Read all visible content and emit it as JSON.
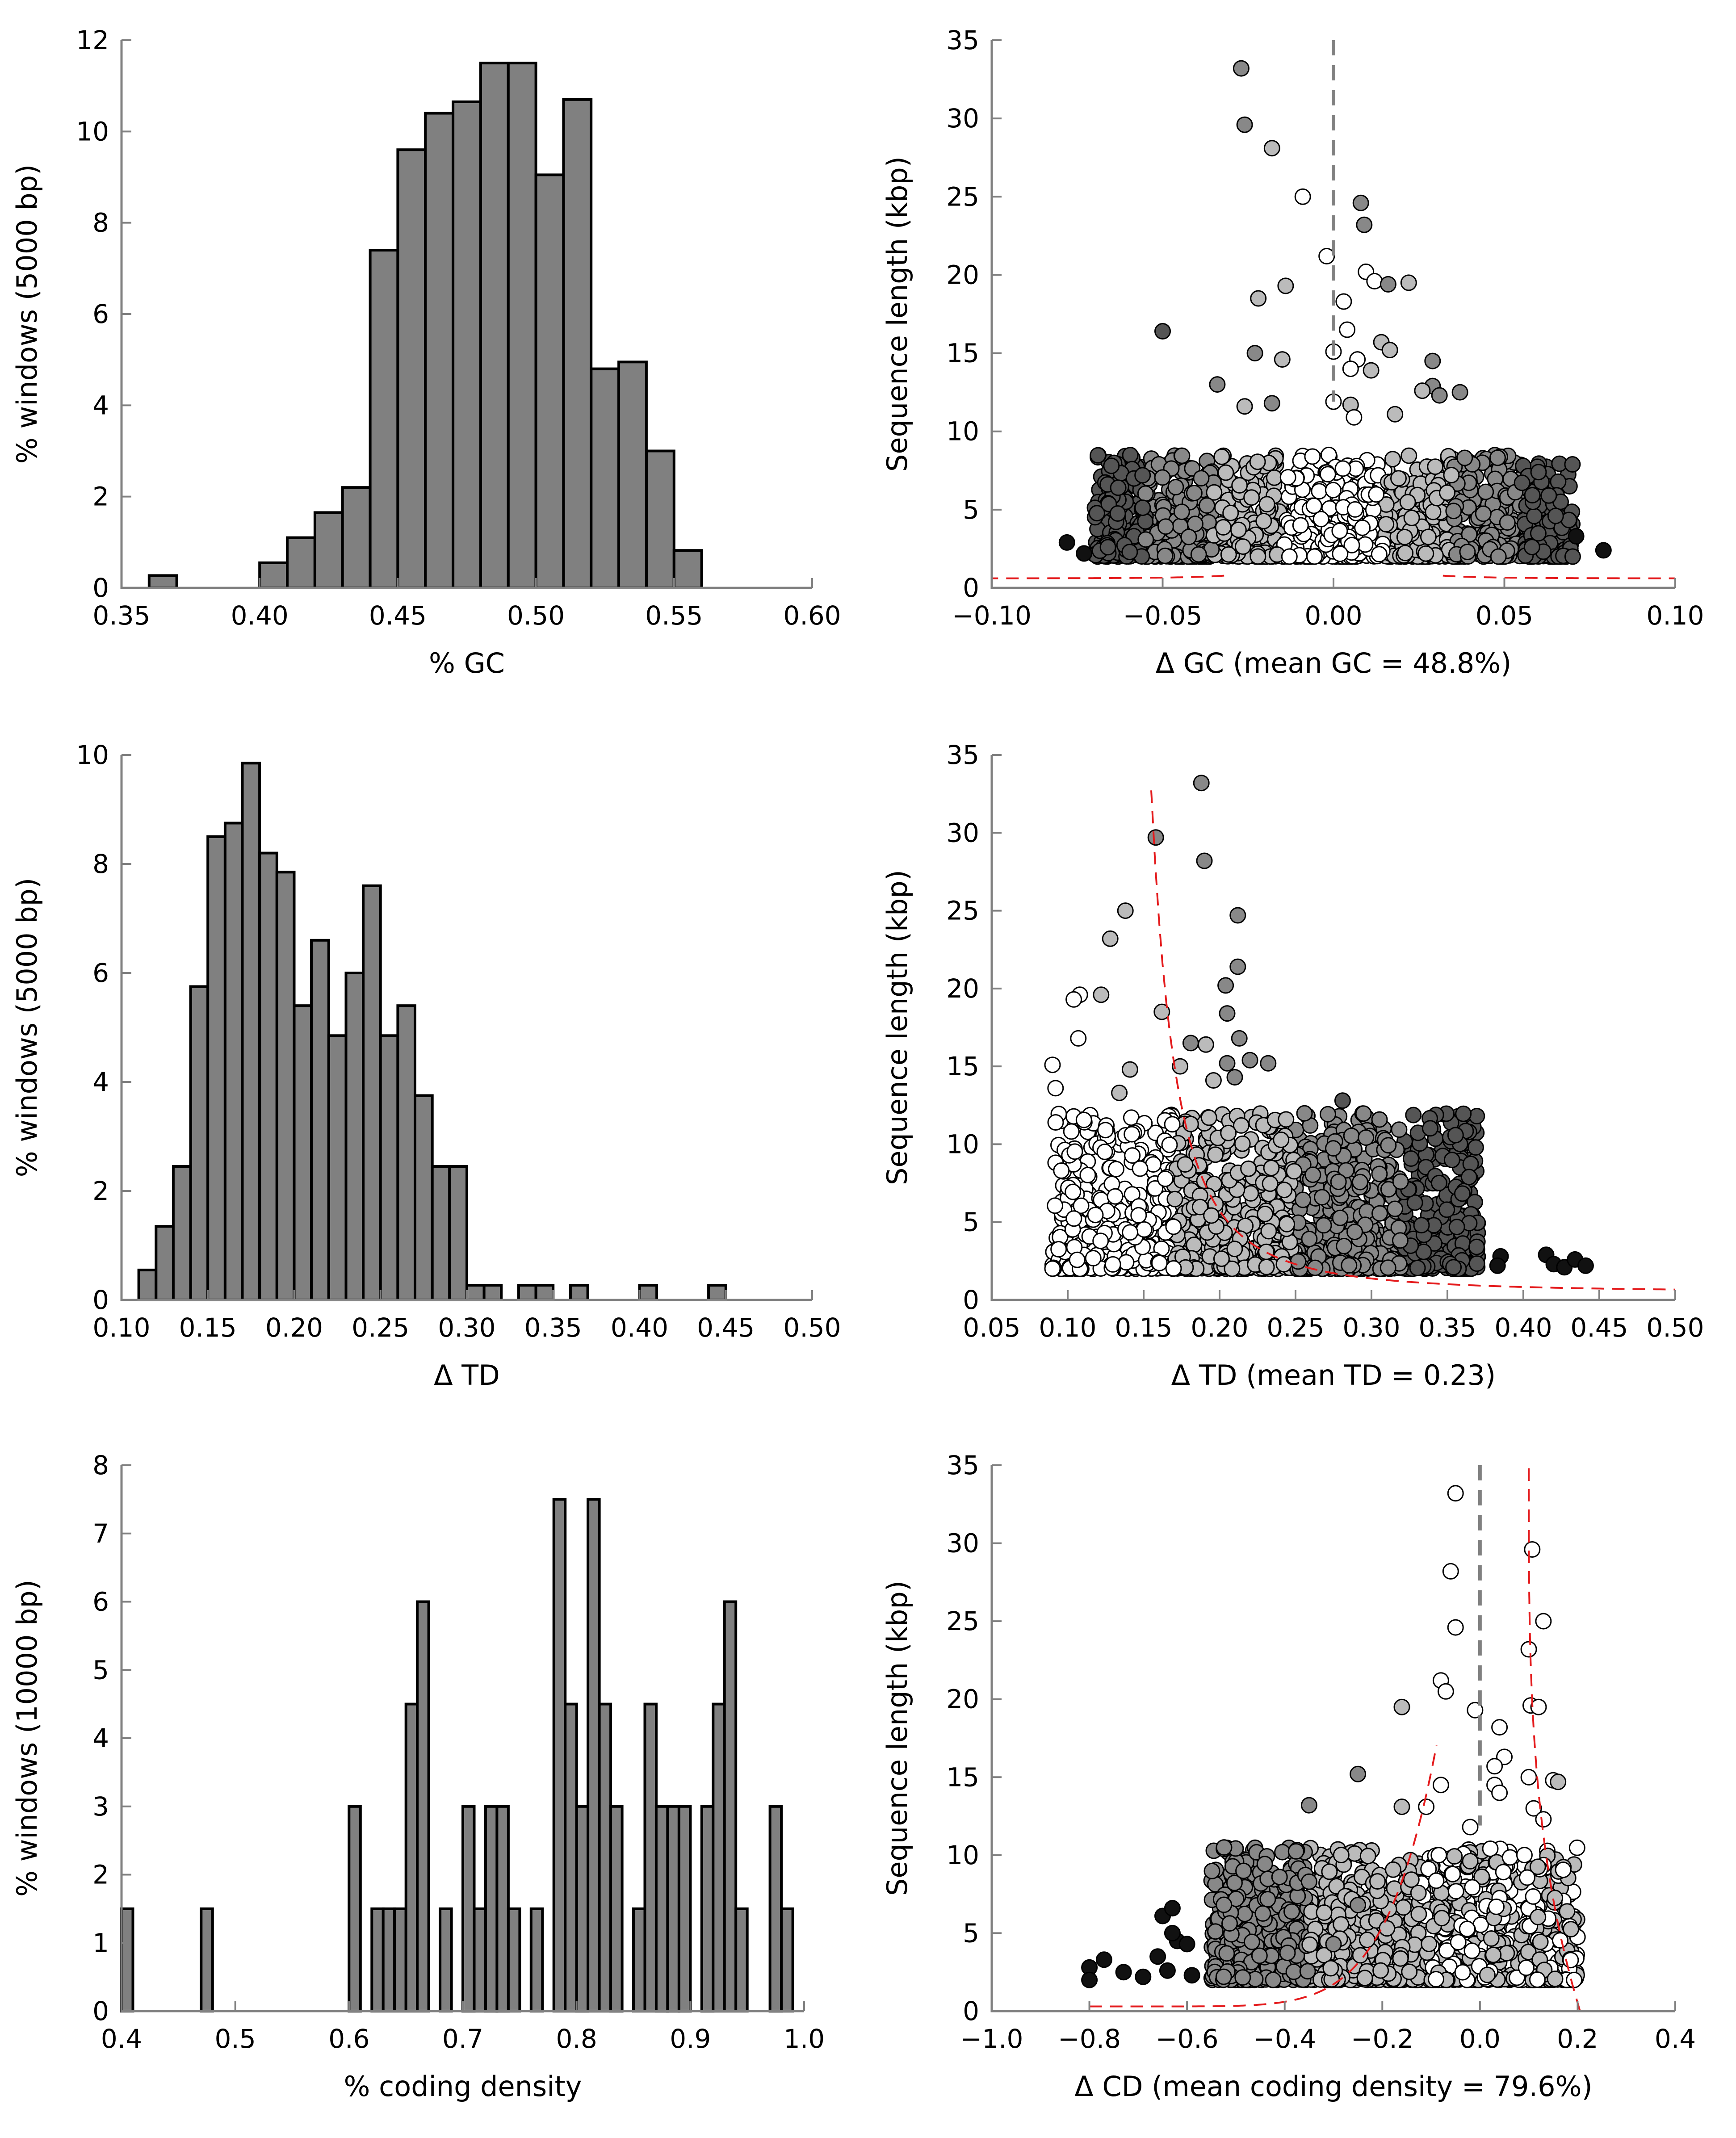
{
  "colors": {
    "bar_fill": "#808080",
    "bar_edge": "#000000",
    "cutoff_line": "#e41a1c",
    "zero_line": "#808080",
    "axis": "#808080",
    "point_shades": [
      "#111111",
      "#555555",
      "#888888",
      "#bbbbbb",
      "#ffffff"
    ]
  },
  "chart_data": [
    {
      "panel": "gc-histogram",
      "type": "bar",
      "xlabel": "% GC",
      "ylabel": "% windows (5000 bp)",
      "xlim": [
        0.35,
        0.6
      ],
      "ylim": [
        0,
        12
      ],
      "xticks": [
        "0.35",
        "0.40",
        "0.45",
        "0.50",
        "0.55",
        "0.60"
      ],
      "yticks": [
        "0",
        "2",
        "4",
        "6",
        "8",
        "10",
        "12"
      ],
      "bin_edges": [
        0.36,
        0.37,
        0.38,
        0.39,
        0.4,
        0.41,
        0.42,
        0.43,
        0.44,
        0.45,
        0.46,
        0.47,
        0.48,
        0.49,
        0.5,
        0.51,
        0.52,
        0.53,
        0.54,
        0.55,
        0.56
      ],
      "values": [
        0.27,
        0,
        0,
        0,
        0.55,
        1.1,
        1.65,
        2.2,
        7.4,
        9.6,
        10.4,
        10.65,
        11.5,
        11.5,
        9.05,
        10.7,
        4.8,
        4.95,
        3.0,
        0.82
      ]
    },
    {
      "panel": "gc-scatter",
      "type": "scatter",
      "xlabel": "Δ GC (mean GC = 48.8%)",
      "ylabel": "Sequence length (kbp)",
      "xlim": [
        -0.1,
        0.1
      ],
      "ylim": [
        0,
        35
      ],
      "xticks": [
        "−0.10",
        "−0.05",
        "0.00",
        "0.05",
        "0.10"
      ],
      "yticks": [
        "0",
        "5",
        "10",
        "15",
        "20",
        "25",
        "30",
        "35"
      ],
      "zero_line": 0,
      "points": [
        [
          -0.027,
          33.2,
          2
        ],
        [
          -0.026,
          29.6,
          2
        ],
        [
          -0.018,
          28.1,
          3
        ],
        [
          -0.009,
          25.0,
          4
        ],
        [
          0.008,
          24.6,
          2
        ],
        [
          0.009,
          23.2,
          2
        ],
        [
          -0.002,
          21.2,
          4
        ],
        [
          0.0095,
          20.2,
          4
        ],
        [
          0.012,
          19.6,
          4
        ],
        [
          0.022,
          19.5,
          3
        ],
        [
          0.016,
          19.4,
          2
        ],
        [
          -0.014,
          19.3,
          3
        ],
        [
          -0.022,
          18.5,
          3
        ],
        [
          0.003,
          18.3,
          4
        ],
        [
          0.004,
          16.5,
          4
        ],
        [
          -0.05,
          16.4,
          1
        ],
        [
          0.014,
          15.7,
          3
        ],
        [
          0.0165,
          15.2,
          3
        ],
        [
          -0.023,
          15.0,
          2
        ],
        [
          0.0,
          15.1,
          4
        ],
        [
          0.007,
          14.6,
          4
        ],
        [
          0.005,
          14.0,
          4
        ],
        [
          -0.015,
          14.6,
          3
        ],
        [
          0.029,
          14.5,
          2
        ],
        [
          0.011,
          13.9,
          3
        ],
        [
          0.029,
          12.9,
          2
        ],
        [
          -0.034,
          13.0,
          2
        ],
        [
          0.026,
          12.6,
          3
        ],
        [
          0.031,
          12.3,
          2
        ],
        [
          0.037,
          12.5,
          2
        ],
        [
          -0.018,
          11.8,
          2
        ],
        [
          0.005,
          11.7,
          3
        ],
        [
          -0.026,
          11.6,
          3
        ],
        [
          0.0,
          11.9,
          4
        ],
        [
          0.006,
          10.9,
          4
        ],
        [
          0.018,
          11.1,
          3
        ],
        [
          -0.078,
          2.9,
          0
        ],
        [
          -0.073,
          2.2,
          0
        ],
        [
          -0.066,
          2.6,
          1
        ],
        [
          0.079,
          2.4,
          0
        ],
        [
          0.071,
          3.3,
          0
        ],
        [
          0.065,
          4.6,
          1
        ],
        [
          -0.065,
          7.8,
          1
        ],
        [
          -0.063,
          6.4,
          1
        ],
        [
          0.06,
          7.4,
          1
        ],
        [
          0.063,
          5.9,
          1
        ]
      ],
      "cloud": {
        "seed": 7,
        "count": 1500,
        "x_range": [
          -0.07,
          0.07
        ],
        "y_range": [
          2,
          8.5
        ]
      }
    },
    {
      "panel": "td-histogram",
      "type": "bar",
      "xlabel": "Δ TD",
      "ylabel": "% windows (5000 bp)",
      "xlim": [
        0.1,
        0.5
      ],
      "ylim": [
        0,
        10
      ],
      "xticks": [
        "0.10",
        "0.15",
        "0.20",
        "0.25",
        "0.30",
        "0.35",
        "0.40",
        "0.45",
        "0.50"
      ],
      "yticks": [
        "0",
        "2",
        "4",
        "6",
        "8",
        "10"
      ],
      "bin_edges": [
        0.11,
        0.12,
        0.13,
        0.14,
        0.15,
        0.16,
        0.17,
        0.18,
        0.19,
        0.2,
        0.21,
        0.22,
        0.23,
        0.24,
        0.25,
        0.26,
        0.27,
        0.28,
        0.29,
        0.3,
        0.31,
        0.32,
        0.33,
        0.34,
        0.35,
        0.36,
        0.37,
        0.38,
        0.39,
        0.4,
        0.41,
        0.42,
        0.43,
        0.44,
        0.45,
        0.46
      ],
      "values": [
        0.55,
        1.35,
        2.45,
        5.75,
        8.5,
        8.75,
        9.85,
        8.2,
        7.85,
        5.4,
        6.6,
        4.85,
        6.0,
        7.6,
        4.85,
        5.4,
        3.75,
        2.45,
        2.45,
        0.27,
        0.27,
        0,
        0.27,
        0.27,
        0,
        0.27,
        0,
        0,
        0,
        0.27,
        0,
        0,
        0,
        0.27,
        0
      ]
    },
    {
      "panel": "td-scatter",
      "type": "scatter",
      "xlabel": "Δ TD (mean TD = 0.23)",
      "ylabel": "Sequence length (kbp)",
      "xlim": [
        0.05,
        0.5
      ],
      "ylim": [
        0,
        35
      ],
      "xticks": [
        "0.05",
        "0.10",
        "0.15",
        "0.20",
        "0.25",
        "0.30",
        "0.35",
        "0.40",
        "0.45",
        "0.50"
      ],
      "yticks": [
        "0",
        "5",
        "10",
        "15",
        "20",
        "25",
        "30",
        "35"
      ],
      "points": [
        [
          0.188,
          33.2,
          2
        ],
        [
          0.158,
          29.7,
          2
        ],
        [
          0.19,
          28.2,
          2
        ],
        [
          0.138,
          25.0,
          3
        ],
        [
          0.212,
          24.7,
          2
        ],
        [
          0.128,
          23.2,
          3
        ],
        [
          0.204,
          20.2,
          2
        ],
        [
          0.212,
          21.4,
          2
        ],
        [
          0.108,
          19.6,
          4
        ],
        [
          0.122,
          19.6,
          3
        ],
        [
          0.205,
          18.4,
          2
        ],
        [
          0.162,
          18.5,
          3
        ],
        [
          0.104,
          19.3,
          4
        ],
        [
          0.107,
          16.8,
          4
        ],
        [
          0.213,
          16.8,
          2
        ],
        [
          0.181,
          16.5,
          2
        ],
        [
          0.191,
          16.4,
          3
        ],
        [
          0.205,
          15.2,
          2
        ],
        [
          0.22,
          15.4,
          2
        ],
        [
          0.232,
          15.2,
          2
        ],
        [
          0.09,
          15.1,
          4
        ],
        [
          0.141,
          14.8,
          3
        ],
        [
          0.174,
          15.0,
          3
        ],
        [
          0.21,
          14.3,
          2
        ],
        [
          0.196,
          14.1,
          3
        ],
        [
          0.092,
          13.6,
          4
        ],
        [
          0.134,
          13.3,
          3
        ],
        [
          0.281,
          12.8,
          1
        ],
        [
          0.415,
          2.9,
          0
        ],
        [
          0.42,
          2.3,
          0
        ],
        [
          0.427,
          2.1,
          0
        ],
        [
          0.434,
          2.6,
          0
        ],
        [
          0.441,
          2.2,
          0
        ],
        [
          0.385,
          2.8,
          0
        ],
        [
          0.383,
          2.2,
          0
        ],
        [
          0.354,
          2.1,
          1
        ]
      ],
      "cloud": {
        "seed": 11,
        "count": 1400,
        "x_range": [
          0.09,
          0.37
        ],
        "y_range": [
          2,
          12
        ]
      }
    },
    {
      "panel": "cd-histogram",
      "type": "bar",
      "xlabel": "% coding density",
      "ylabel": "% windows (10000 bp)",
      "xlim": [
        0.4,
        1.0
      ],
      "ylim": [
        0,
        8
      ],
      "xticks": [
        "0.4",
        "0.5",
        "0.6",
        "0.7",
        "0.8",
        "0.9",
        "1.0"
      ],
      "yticks": [
        "0",
        "1",
        "2",
        "3",
        "4",
        "5",
        "6",
        "7",
        "8"
      ],
      "bin_edges": [
        0.4,
        0.41,
        0.42,
        0.43,
        0.44,
        0.45,
        0.46,
        0.47,
        0.48,
        0.49,
        0.5,
        0.51,
        0.52,
        0.53,
        0.54,
        0.55,
        0.56,
        0.57,
        0.58,
        0.59,
        0.6,
        0.61,
        0.62,
        0.63,
        0.64,
        0.65,
        0.66,
        0.67,
        0.68,
        0.69,
        0.7,
        0.71,
        0.72,
        0.73,
        0.74,
        0.75,
        0.76,
        0.77,
        0.78,
        0.79,
        0.8,
        0.81,
        0.82,
        0.83,
        0.84,
        0.85,
        0.86,
        0.87,
        0.88,
        0.89,
        0.9,
        0.91,
        0.92,
        0.93,
        0.94,
        0.95,
        0.96,
        0.97,
        0.98,
        0.99
      ],
      "values": [
        1.5,
        0,
        0,
        0,
        0,
        0,
        0,
        1.5,
        0,
        0,
        0,
        0,
        0,
        0,
        0,
        0,
        0,
        0,
        0,
        0,
        3.0,
        0,
        1.5,
        1.5,
        1.5,
        4.5,
        6.0,
        0,
        1.5,
        0,
        3.0,
        1.5,
        3.0,
        3.0,
        1.5,
        0,
        1.5,
        0,
        7.5,
        4.5,
        3.0,
        7.5,
        4.5,
        3.0,
        0,
        1.5,
        4.5,
        3.0,
        3.0,
        3.0,
        0,
        3.0,
        4.5,
        6.0,
        1.5,
        0,
        0,
        3.0,
        1.5
      ]
    },
    {
      "panel": "cd-scatter",
      "type": "scatter",
      "xlabel": "Δ CD (mean coding density = 79.6%)",
      "ylabel": "Sequence length (kbp)",
      "xlim": [
        -1.0,
        0.4
      ],
      "ylim": [
        0,
        35
      ],
      "xticks": [
        "−1.0",
        "−0.8",
        "−0.6",
        "−0.4",
        "−0.2",
        "0.0",
        "0.2",
        "0.4"
      ],
      "yticks": [
        "0",
        "5",
        "10",
        "15",
        "20",
        "25",
        "30",
        "35"
      ],
      "zero_line": 0,
      "points": [
        [
          -0.05,
          33.2,
          4
        ],
        [
          0.107,
          29.6,
          4
        ],
        [
          -0.06,
          28.2,
          4
        ],
        [
          0.13,
          25.0,
          4
        ],
        [
          -0.05,
          24.6,
          4
        ],
        [
          0.1,
          23.2,
          4
        ],
        [
          -0.08,
          21.2,
          4
        ],
        [
          -0.07,
          20.5,
          4
        ],
        [
          0.104,
          19.6,
          4
        ],
        [
          0.12,
          19.5,
          4
        ],
        [
          -0.16,
          19.5,
          3
        ],
        [
          -0.01,
          19.3,
          4
        ],
        [
          0.04,
          18.2,
          4
        ],
        [
          0.05,
          16.3,
          4
        ],
        [
          0.03,
          15.7,
          4
        ],
        [
          -0.25,
          15.2,
          2
        ],
        [
          0.1,
          15.0,
          4
        ],
        [
          0.15,
          14.8,
          4
        ],
        [
          0.16,
          14.7,
          3
        ],
        [
          0.03,
          14.5,
          4
        ],
        [
          0.04,
          14.0,
          4
        ],
        [
          -0.08,
          14.5,
          4
        ],
        [
          -0.35,
          13.2,
          2
        ],
        [
          -0.16,
          13.1,
          3
        ],
        [
          0.11,
          13.0,
          4
        ],
        [
          -0.11,
          13.1,
          4
        ],
        [
          0.13,
          12.3,
          4
        ],
        [
          -0.02,
          11.8,
          4
        ],
        [
          -0.8,
          2.8,
          0
        ],
        [
          -0.8,
          2.0,
          0
        ],
        [
          -0.77,
          3.3,
          0
        ],
        [
          -0.73,
          2.5,
          0
        ],
        [
          -0.69,
          2.2,
          0
        ],
        [
          -0.66,
          3.5,
          0
        ],
        [
          -0.65,
          6.1,
          0
        ],
        [
          -0.62,
          4.5,
          0
        ],
        [
          -0.6,
          4.3,
          0
        ],
        [
          -0.64,
          2.6,
          0
        ],
        [
          -0.59,
          2.3,
          0
        ],
        [
          -0.63,
          6.6,
          0
        ],
        [
          -0.63,
          5.0,
          0
        ],
        [
          -0.35,
          8.3,
          2
        ],
        [
          -0.25,
          6.8,
          2
        ],
        [
          -0.3,
          4.3,
          2
        ]
      ],
      "cloud": {
        "seed": 23,
        "count": 1400,
        "x_range": [
          -0.55,
          0.2
        ],
        "y_range": [
          2,
          10.5
        ]
      }
    }
  ]
}
